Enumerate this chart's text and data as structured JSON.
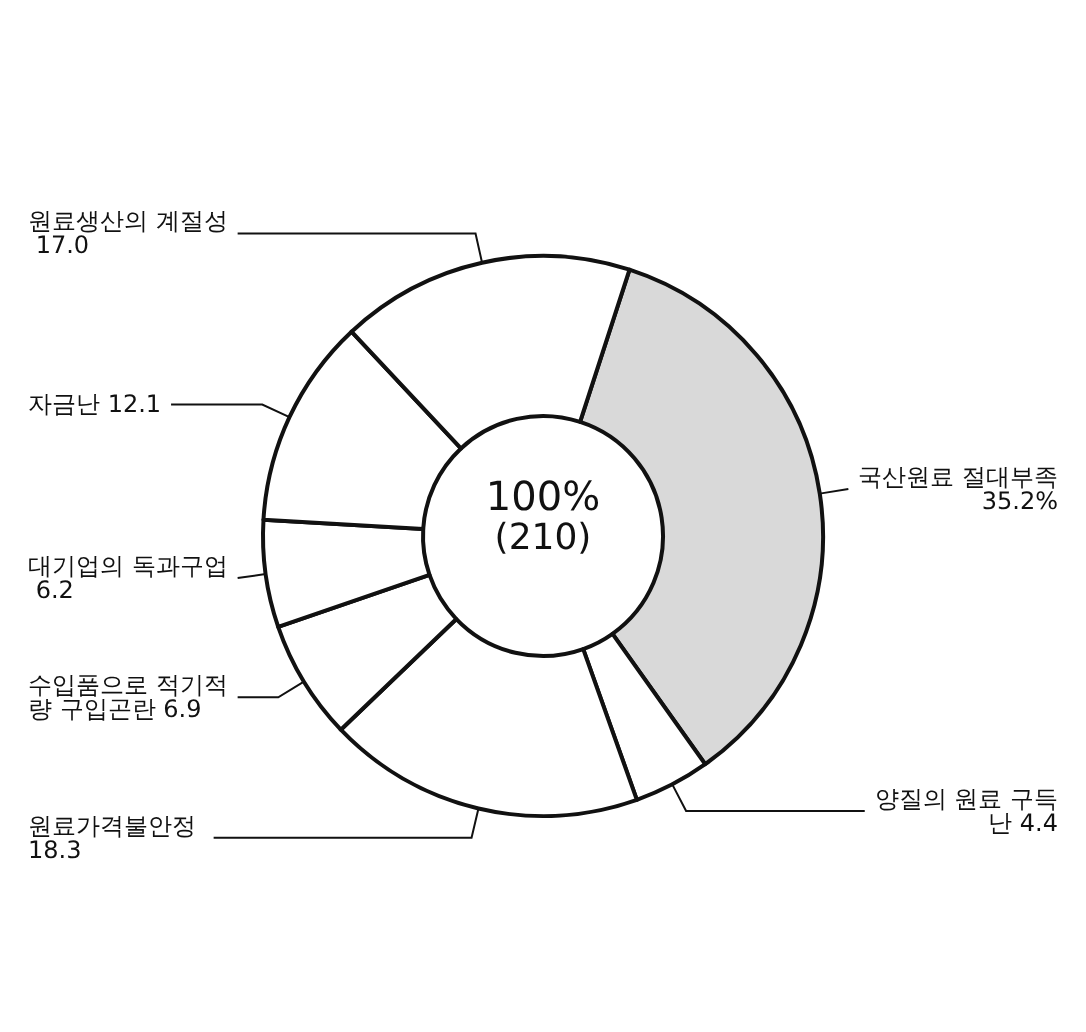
{
  "chart_data": {
    "type": "donut",
    "categories": [
      "국산원료 절대부족",
      "양질의 원료 구득난",
      "원료가격불안정",
      "수입품으로 적기적량 구입곤란",
      "대기업의 독과구업",
      "자금난",
      "원료생산의 계절성"
    ],
    "values": [
      35.2,
      4.4,
      18.3,
      6.9,
      6.2,
      12.1,
      17.0
    ],
    "value_labels": [
      "35.2%",
      "4.4",
      "18.3",
      "6.9",
      "6.2",
      "12.1",
      "17.0"
    ],
    "colors": [
      "#d9d9d9",
      "#ffffff",
      "#ffffff",
      "#ffffff",
      "#ffffff",
      "#ffffff",
      "#ffffff"
    ],
    "annotations": [
      "100%",
      "(210)"
    ],
    "legend": false
  }
}
